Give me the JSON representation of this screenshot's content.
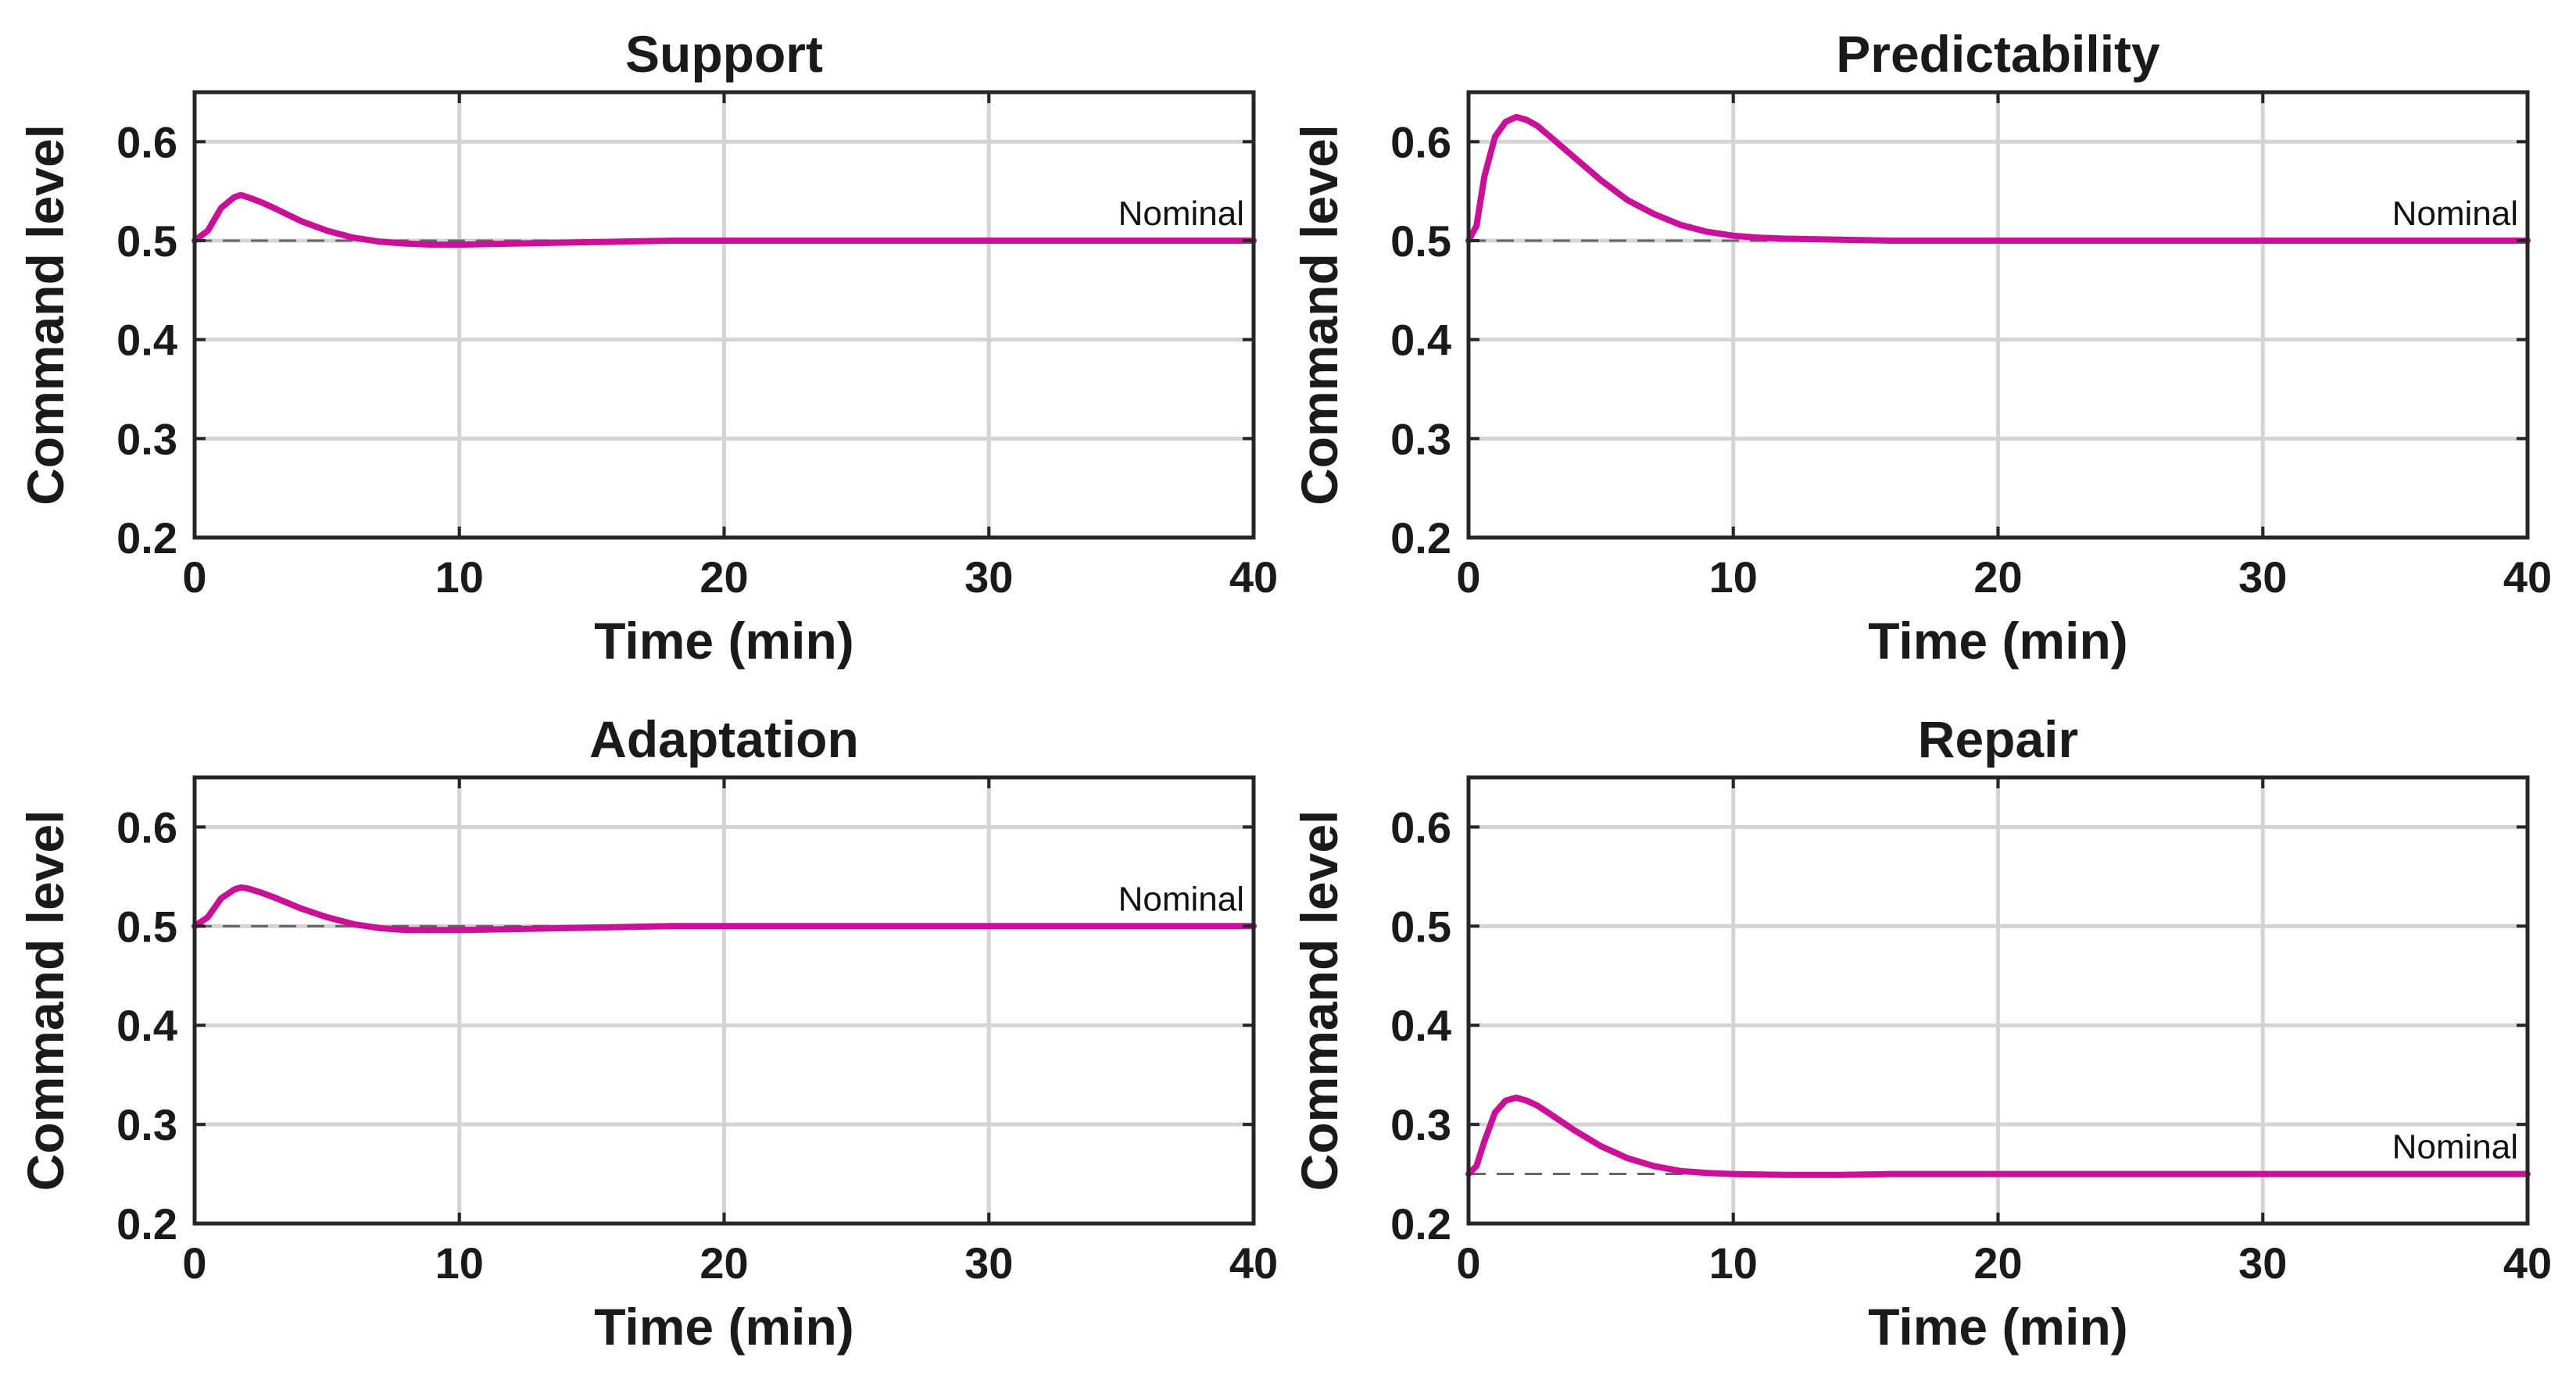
{
  "chart_data": [
    {
      "type": "line",
      "title": "Support",
      "xlabel": "Time (min)",
      "ylabel": "Command level",
      "xlim": [
        0,
        40
      ],
      "ylim": [
        0.2,
        0.65
      ],
      "xticks": [
        0,
        10,
        20,
        30,
        40
      ],
      "yticks": [
        0.2,
        0.3,
        0.4,
        0.5,
        0.6
      ],
      "grid": true,
      "nominal_value": 0.5,
      "nominal_label": "Nominal",
      "series": [
        {
          "color": "#cc0f99",
          "x": [
            0,
            0.5,
            1,
            1.5,
            1.75,
            2,
            2.5,
            3,
            4,
            5,
            6,
            7,
            8,
            9,
            10,
            12,
            14,
            16,
            18,
            20,
            25,
            30,
            35,
            40
          ],
          "y": [
            0.5,
            0.51,
            0.533,
            0.544,
            0.546,
            0.544,
            0.539,
            0.533,
            0.52,
            0.51,
            0.503,
            0.499,
            0.497,
            0.496,
            0.496,
            0.497,
            0.498,
            0.499,
            0.5,
            0.5,
            0.5,
            0.5,
            0.5,
            0.5
          ]
        }
      ]
    },
    {
      "type": "line",
      "title": "Predictability",
      "xlabel": "Time (min)",
      "ylabel": "Command level",
      "xlim": [
        0,
        40
      ],
      "ylim": [
        0.2,
        0.65
      ],
      "xticks": [
        0,
        10,
        20,
        30,
        40
      ],
      "yticks": [
        0.2,
        0.3,
        0.4,
        0.5,
        0.6
      ],
      "grid": true,
      "nominal_value": 0.5,
      "nominal_label": "Nominal",
      "series": [
        {
          "color": "#cc0f99",
          "x": [
            0,
            0.3,
            0.6,
            1,
            1.4,
            1.8,
            2.2,
            2.6,
            3,
            4,
            5,
            6,
            7,
            8,
            9,
            10,
            11,
            12,
            14,
            16,
            20,
            25,
            30,
            35,
            40
          ],
          "y": [
            0.5,
            0.515,
            0.565,
            0.605,
            0.62,
            0.625,
            0.622,
            0.616,
            0.607,
            0.584,
            0.561,
            0.541,
            0.527,
            0.516,
            0.509,
            0.505,
            0.503,
            0.502,
            0.501,
            0.5,
            0.5,
            0.5,
            0.5,
            0.5,
            0.5
          ]
        }
      ]
    },
    {
      "type": "line",
      "title": "Adaptation",
      "xlabel": "Time (min)",
      "ylabel": "Command level",
      "xlim": [
        0,
        40
      ],
      "ylim": [
        0.2,
        0.65
      ],
      "xticks": [
        0,
        10,
        20,
        30,
        40
      ],
      "yticks": [
        0.2,
        0.3,
        0.4,
        0.5,
        0.6
      ],
      "grid": true,
      "nominal_value": 0.5,
      "nominal_label": "Nominal",
      "series": [
        {
          "color": "#cc0f99",
          "x": [
            0,
            0.5,
            1,
            1.5,
            1.75,
            2,
            2.5,
            3,
            4,
            5,
            6,
            7,
            8,
            9,
            10,
            12,
            14,
            16,
            18,
            20,
            25,
            30,
            35,
            40
          ],
          "y": [
            0.5,
            0.509,
            0.528,
            0.537,
            0.539,
            0.538,
            0.534,
            0.529,
            0.518,
            0.509,
            0.502,
            0.498,
            0.496,
            0.496,
            0.496,
            0.497,
            0.498,
            0.499,
            0.5,
            0.5,
            0.5,
            0.5,
            0.5,
            0.5
          ]
        }
      ]
    },
    {
      "type": "line",
      "title": "Repair",
      "xlabel": "Time (min)",
      "ylabel": "Command level",
      "xlim": [
        0,
        40
      ],
      "ylim": [
        0.2,
        0.65
      ],
      "xticks": [
        0,
        10,
        20,
        30,
        40
      ],
      "yticks": [
        0.2,
        0.3,
        0.4,
        0.5,
        0.6
      ],
      "grid": true,
      "nominal_value": 0.25,
      "nominal_label": "Nominal",
      "series": [
        {
          "color": "#cc0f99",
          "x": [
            0,
            0.3,
            0.6,
            1,
            1.4,
            1.8,
            2.2,
            2.6,
            3,
            4,
            5,
            6,
            7,
            8,
            9,
            10,
            12,
            14,
            16,
            20,
            25,
            30,
            35,
            40
          ],
          "y": [
            0.25,
            0.258,
            0.283,
            0.312,
            0.324,
            0.327,
            0.324,
            0.319,
            0.312,
            0.294,
            0.278,
            0.266,
            0.258,
            0.253,
            0.251,
            0.25,
            0.249,
            0.249,
            0.25,
            0.25,
            0.25,
            0.25,
            0.25,
            0.25
          ]
        }
      ]
    }
  ]
}
